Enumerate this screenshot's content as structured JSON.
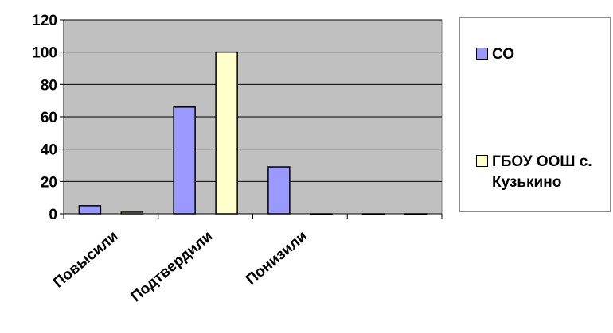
{
  "chart_data": {
    "type": "bar",
    "categories": [
      "Повысили",
      "Подтвердили",
      "Понизили",
      ""
    ],
    "series": [
      {
        "name": "СО",
        "values": [
          5,
          66,
          29,
          0
        ],
        "color": "#9999ff"
      },
      {
        "name": "ГБОУ ООШ с. Кузькино",
        "values": [
          1,
          100,
          0,
          0
        ],
        "color": "#ffffcc"
      }
    ],
    "ylim": [
      0,
      120
    ],
    "yticks": [
      "0",
      "20",
      "40",
      "60",
      "80",
      "100",
      "120"
    ],
    "title": "",
    "xlabel": "",
    "ylabel": "",
    "grid": true,
    "plot_background": "#c0c0c0",
    "legend_position": "right"
  },
  "legend": {
    "items": [
      {
        "label": "СО",
        "color": "#9999ff"
      },
      {
        "label": "ГБОУ ООШ с.\nКузькино",
        "color": "#ffffcc"
      }
    ]
  }
}
